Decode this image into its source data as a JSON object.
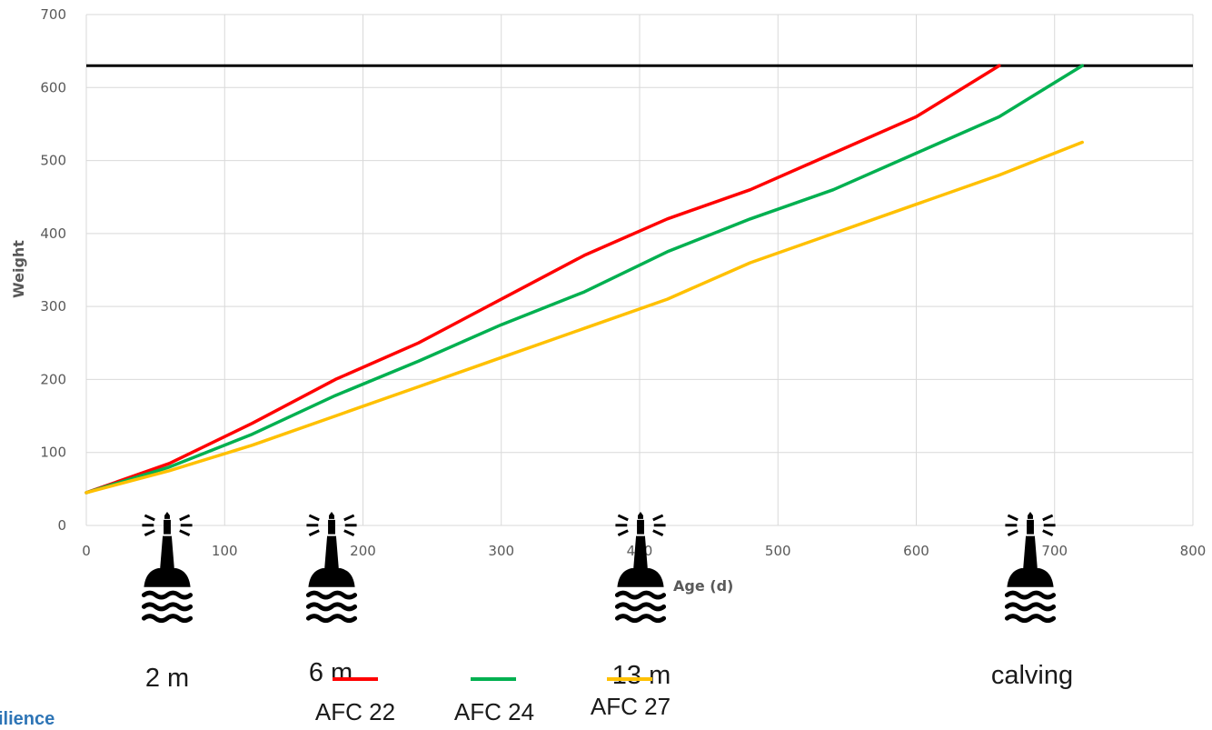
{
  "chart_data": {
    "type": "line",
    "xlabel": "Age (d)",
    "ylabel": "Weight",
    "xlim": [
      0,
      800
    ],
    "ylim": [
      0,
      700
    ],
    "xticks": [
      "0",
      "100",
      "200",
      "300",
      "400",
      "500",
      "600",
      "700",
      "800"
    ],
    "yticks": [
      "0",
      "100",
      "200",
      "300",
      "400",
      "500",
      "600",
      "700"
    ],
    "grid": true,
    "legend_position": "bottom-center",
    "target_line": {
      "y": 630,
      "color": "#000000"
    },
    "series": [
      {
        "name": "AFC 22",
        "color": "#ff0000",
        "x": [
          0,
          60,
          120,
          180,
          240,
          300,
          360,
          420,
          480,
          540,
          600,
          660
        ],
        "y": [
          45,
          85,
          140,
          200,
          250,
          310,
          370,
          420,
          460,
          510,
          560,
          630
        ]
      },
      {
        "name": "AFC 24",
        "color": "#00b050",
        "x": [
          0,
          60,
          120,
          180,
          240,
          300,
          360,
          420,
          480,
          540,
          600,
          660,
          720
        ],
        "y": [
          45,
          80,
          125,
          178,
          225,
          275,
          320,
          375,
          420,
          460,
          510,
          560,
          630
        ]
      },
      {
        "name": "AFC 27",
        "color": "#ffc000",
        "x": [
          0,
          60,
          120,
          180,
          240,
          300,
          360,
          420,
          480,
          540,
          600,
          660,
          720
        ],
        "y": [
          45,
          75,
          110,
          150,
          190,
          230,
          270,
          310,
          360,
          400,
          440,
          480,
          525
        ]
      }
    ],
    "milestones": [
      {
        "label": "2 m",
        "icon": "lighthouse-icon"
      },
      {
        "label": "6 m",
        "icon": "lighthouse-icon"
      },
      {
        "label": "13 m",
        "icon": "lighthouse-icon"
      },
      {
        "label": "calving",
        "icon": "lighthouse-icon"
      }
    ]
  },
  "footer": {
    "brand_text": "ilience"
  }
}
